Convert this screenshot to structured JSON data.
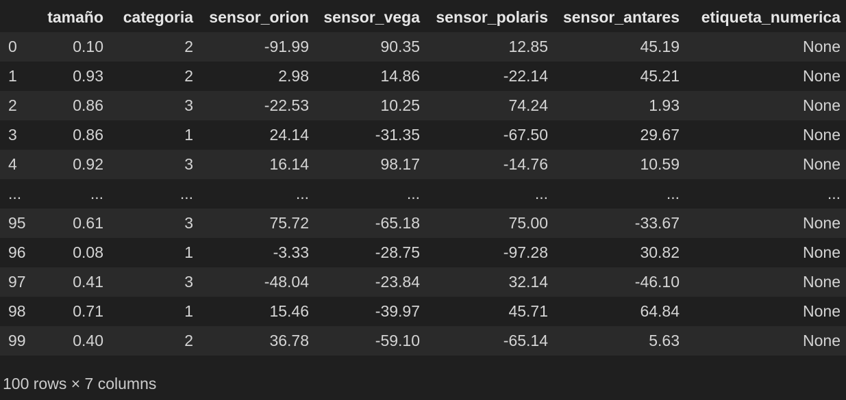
{
  "dataframe": {
    "columns": [
      "tamaño",
      "categoria",
      "sensor_orion",
      "sensor_vega",
      "sensor_polaris",
      "sensor_antares",
      "etiqueta_numerica"
    ],
    "rows": [
      {
        "index": "0",
        "values": [
          "0.10",
          "2",
          "-91.99",
          "90.35",
          "12.85",
          "45.19",
          "None"
        ]
      },
      {
        "index": "1",
        "values": [
          "0.93",
          "2",
          "2.98",
          "14.86",
          "-22.14",
          "45.21",
          "None"
        ]
      },
      {
        "index": "2",
        "values": [
          "0.86",
          "3",
          "-22.53",
          "10.25",
          "74.24",
          "1.93",
          "None"
        ]
      },
      {
        "index": "3",
        "values": [
          "0.86",
          "1",
          "24.14",
          "-31.35",
          "-67.50",
          "29.67",
          "None"
        ]
      },
      {
        "index": "4",
        "values": [
          "0.92",
          "3",
          "16.14",
          "98.17",
          "-14.76",
          "10.59",
          "None"
        ]
      },
      {
        "index": "...",
        "values": [
          "...",
          "...",
          "...",
          "...",
          "...",
          "...",
          "..."
        ]
      },
      {
        "index": "95",
        "values": [
          "0.61",
          "3",
          "75.72",
          "-65.18",
          "75.00",
          "-33.67",
          "None"
        ]
      },
      {
        "index": "96",
        "values": [
          "0.08",
          "1",
          "-3.33",
          "-28.75",
          "-97.28",
          "30.82",
          "None"
        ]
      },
      {
        "index": "97",
        "values": [
          "0.41",
          "3",
          "-48.04",
          "-23.84",
          "32.14",
          "-46.10",
          "None"
        ]
      },
      {
        "index": "98",
        "values": [
          "0.71",
          "1",
          "15.46",
          "-39.97",
          "45.71",
          "64.84",
          "None"
        ]
      },
      {
        "index": "99",
        "values": [
          "0.40",
          "2",
          "36.78",
          "-59.10",
          "-65.14",
          "5.63",
          "None"
        ]
      }
    ],
    "summary": "100 rows × 7 columns"
  },
  "colors": {
    "background": "#1f1f1f",
    "stripe": "#2a2a2a",
    "text": "#d4d4d4",
    "header_text": "#e6e6e6"
  }
}
